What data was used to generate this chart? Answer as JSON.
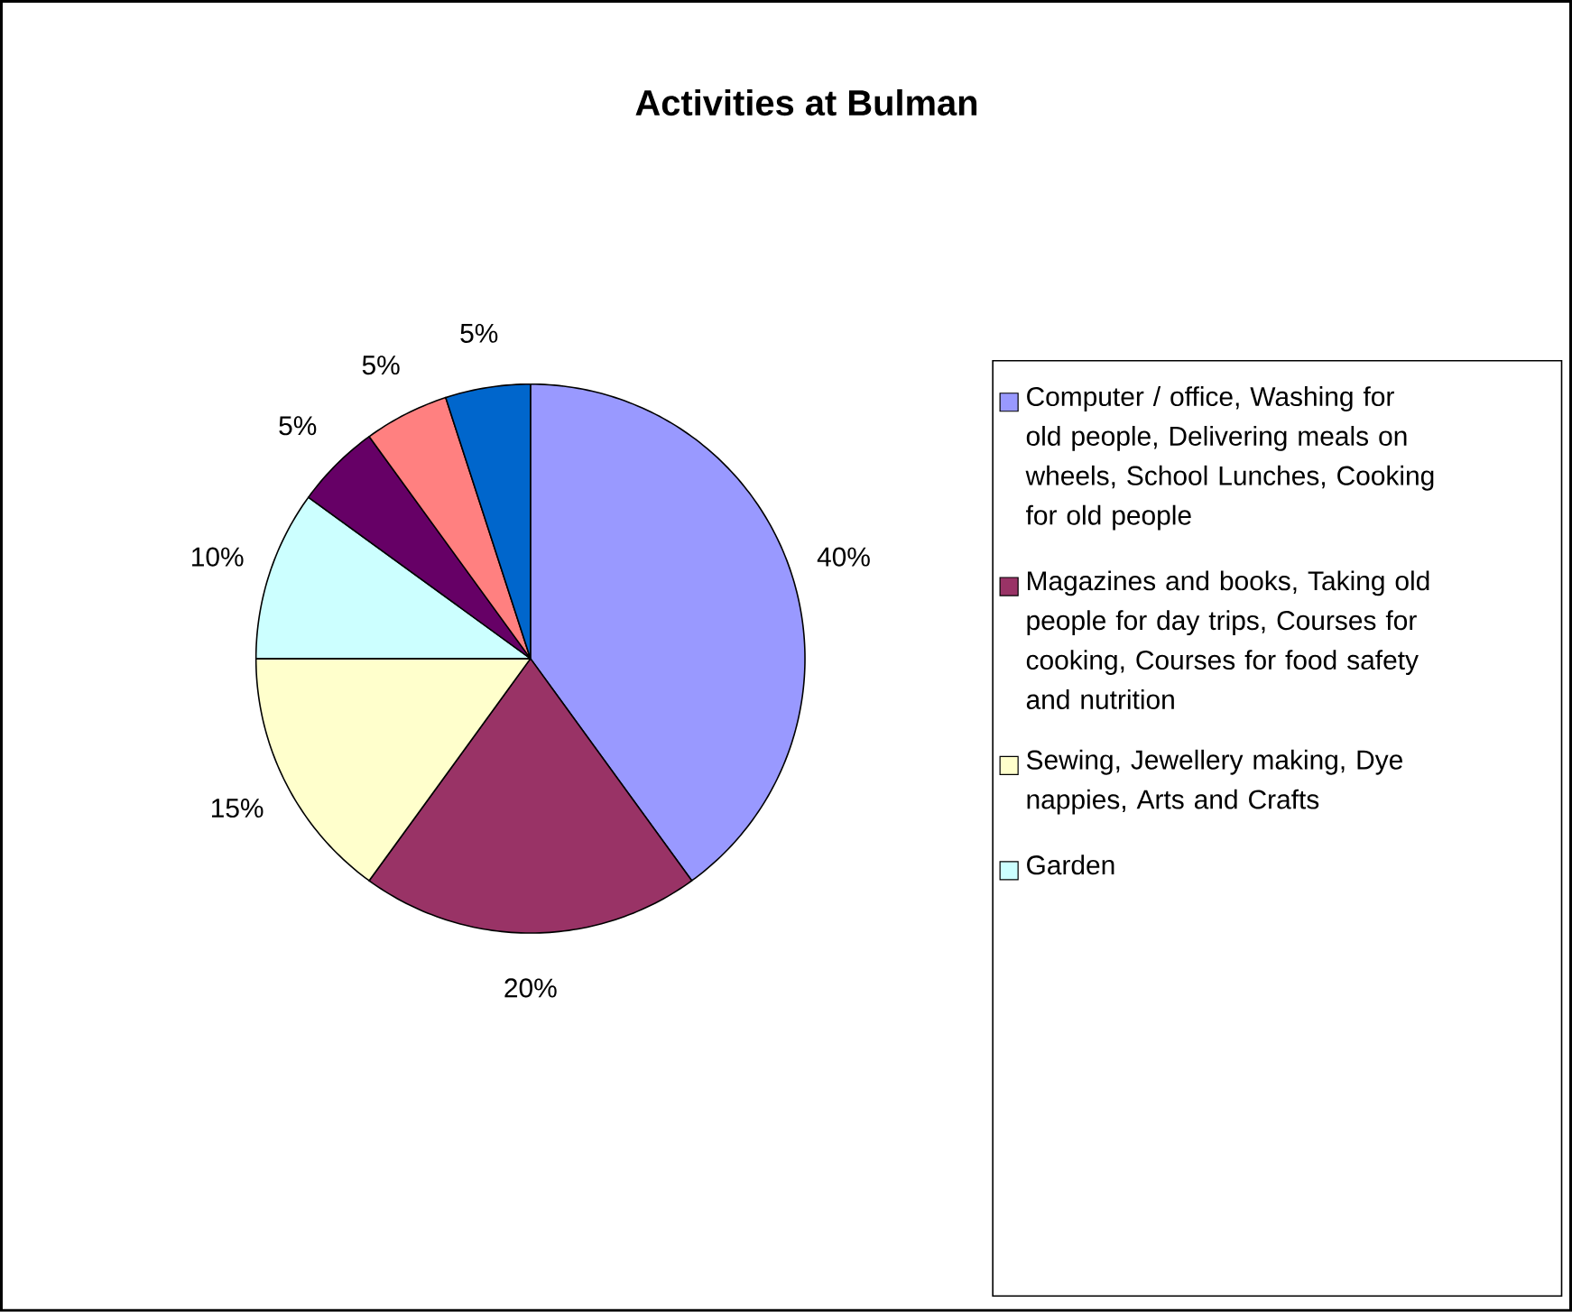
{
  "chart_data": {
    "type": "pie",
    "title": "Activities at Bulman",
    "categories": [
      "Computer / office, Washing for old people, Delivering meals on wheels, School Lunches, Cooking for old people",
      "Magazines and books, Taking old people for day trips, Courses for cooking, Courses for food safety and nutrition",
      "Sewing, Jewellery making, Dye nappies, Arts and Crafts",
      "Garden",
      null,
      null,
      null
    ],
    "values": [
      40,
      20,
      15,
      10,
      5,
      5,
      5
    ],
    "value_labels": [
      "40%",
      "20%",
      "15%",
      "10%",
      "5%",
      "5%",
      "5%"
    ],
    "colors": [
      "#9999ff",
      "#993366",
      "#ffffcc",
      "#ccffff",
      "#660066",
      "#ff8080",
      "#0066cc"
    ],
    "legend": "right"
  }
}
